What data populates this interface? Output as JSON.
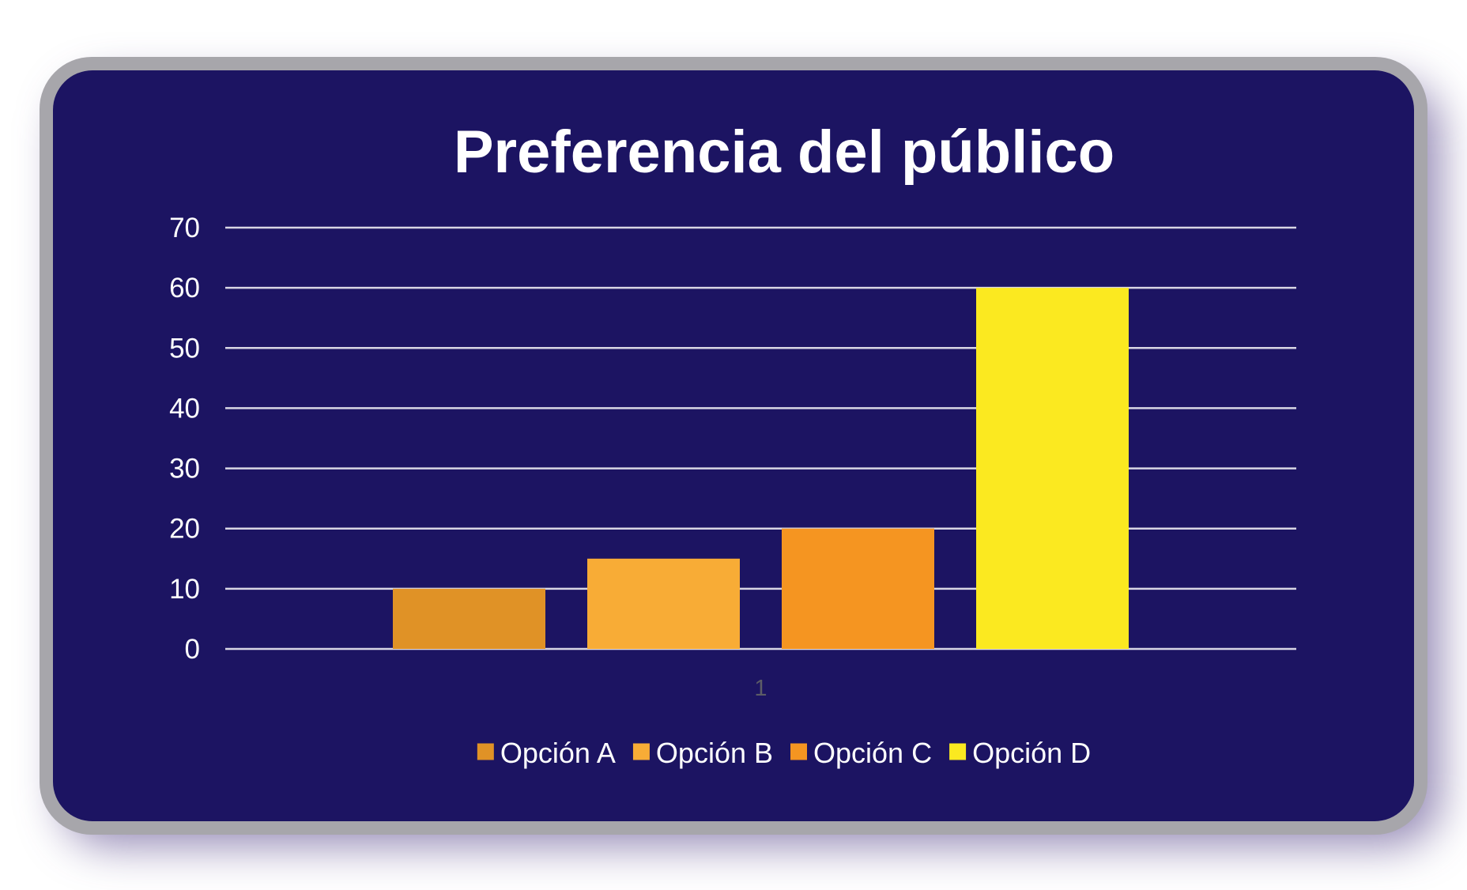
{
  "chart_data": {
    "type": "bar",
    "title": "Preferencia del público",
    "categories": [
      "1"
    ],
    "series": [
      {
        "name": "Opción A",
        "values": [
          10
        ],
        "color": "#e09226"
      },
      {
        "name": "Opción B",
        "values": [
          15
        ],
        "color": "#f8ac36"
      },
      {
        "name": "Opción C",
        "values": [
          20
        ],
        "color": "#f59521"
      },
      {
        "name": "Opción D",
        "values": [
          60
        ],
        "color": "#fbe920"
      }
    ],
    "xlabel": "",
    "ylabel": "",
    "ylim": [
      0,
      70
    ],
    "yticks": [
      "0",
      "10",
      "20",
      "30",
      "40",
      "50",
      "60",
      "70"
    ],
    "grid": true,
    "legend_position": "bottom"
  },
  "colors": {
    "background": "#1c1462",
    "frame": "#a7a6ab",
    "text": "#ffffff"
  }
}
